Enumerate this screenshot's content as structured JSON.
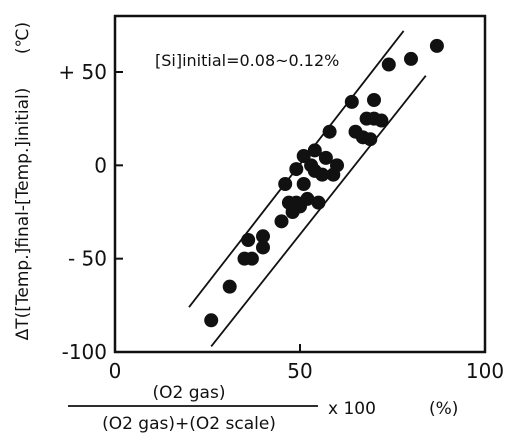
{
  "chart_data": {
    "type": "scatter",
    "title": "",
    "annotation": "[Si]initial=0.08~0.12%",
    "ylabel": "ΔT([Temp.]final-[Temp.]initial)",
    "yunit": "(℃)",
    "xlabel": {
      "numerator": "(O2 gas)",
      "denominator": "(O2 gas)+(O2 scale)",
      "multiplier": "x 100",
      "unit": "(%)"
    },
    "xlim": [
      0,
      100
    ],
    "ylim": [
      -100,
      80
    ],
    "x_ticks": [
      {
        "value": 0,
        "label": "0"
      },
      {
        "value": 50,
        "label": "50"
      },
      {
        "value": 100,
        "label": "100"
      }
    ],
    "y_ticks": [
      {
        "value": 50,
        "label": "+ 50"
      },
      {
        "value": 0,
        "label": "0"
      },
      {
        "value": -50,
        "label": "- 50"
      },
      {
        "value": -100,
        "label": "-100"
      }
    ],
    "grid": false,
    "points": [
      {
        "x": 26,
        "y": -83
      },
      {
        "x": 31,
        "y": -65
      },
      {
        "x": 35,
        "y": -50
      },
      {
        "x": 36,
        "y": -40
      },
      {
        "x": 37,
        "y": -50
      },
      {
        "x": 40,
        "y": -38
      },
      {
        "x": 40,
        "y": -44
      },
      {
        "x": 45,
        "y": -30
      },
      {
        "x": 46,
        "y": -10
      },
      {
        "x": 47,
        "y": -20
      },
      {
        "x": 48,
        "y": -25
      },
      {
        "x": 49,
        "y": -20
      },
      {
        "x": 49,
        "y": -2
      },
      {
        "x": 50,
        "y": -22
      },
      {
        "x": 51,
        "y": -10
      },
      {
        "x": 51,
        "y": 5
      },
      {
        "x": 52,
        "y": -18
      },
      {
        "x": 53,
        "y": 0
      },
      {
        "x": 54,
        "y": 8
      },
      {
        "x": 54,
        "y": -3
      },
      {
        "x": 55,
        "y": -20
      },
      {
        "x": 56,
        "y": -5
      },
      {
        "x": 57,
        "y": 4
      },
      {
        "x": 58,
        "y": 18
      },
      {
        "x": 59,
        "y": -5
      },
      {
        "x": 60,
        "y": 0
      },
      {
        "x": 64,
        "y": 34
      },
      {
        "x": 65,
        "y": 18
      },
      {
        "x": 67,
        "y": 15
      },
      {
        "x": 68,
        "y": 25
      },
      {
        "x": 69,
        "y": 14
      },
      {
        "x": 70,
        "y": 35
      },
      {
        "x": 70,
        "y": 25
      },
      {
        "x": 72,
        "y": 24
      },
      {
        "x": 74,
        "y": 54
      },
      {
        "x": 80,
        "y": 57
      },
      {
        "x": 87,
        "y": 64
      }
    ],
    "band_lines": [
      {
        "x1": 20,
        "y1": -76,
        "x2": 78,
        "y2": 72
      },
      {
        "x1": 26,
        "y1": -97,
        "x2": 84,
        "y2": 48
      }
    ]
  }
}
